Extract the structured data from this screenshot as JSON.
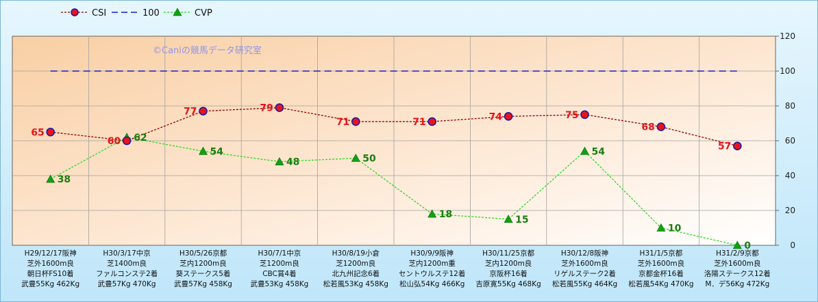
{
  "chart_data": {
    "type": "line",
    "ylim": [
      0,
      120
    ],
    "yticks": [
      0,
      20,
      40,
      60,
      80,
      100,
      120
    ],
    "grid": true,
    "legend_position": "top-left",
    "watermark": "©Caniの競馬データ研究室",
    "categories": [
      [
        "H29/12/17阪神",
        "芝外1600m良",
        "朝日杯FS10着",
        "武豊55Kg 462Kg"
      ],
      [
        "H30/3/17中京",
        "芝1400m良",
        "ファルコンステ2着",
        "武豊57Kg 470Kg"
      ],
      [
        "H30/5/26京都",
        "芝内1200m良",
        "葵ステークス5着",
        "武豊57Kg 458Kg"
      ],
      [
        "H30/7/1中京",
        "芝1200m良",
        "CBC賞4着",
        "武豊53Kg 458Kg"
      ],
      [
        "H30/8/19小倉",
        "芝1200m良",
        "北九州記念6着",
        "松若風53Kg 458Kg"
      ],
      [
        "H30/9/9阪神",
        "芝内1200m重",
        "セントウルステ12着",
        "松山弘54Kg 466Kg"
      ],
      [
        "H30/11/25京都",
        "芝内1200m良",
        "京阪杯16着",
        "吉原寛55Kg 468Kg"
      ],
      [
        "H30/12/8阪神",
        "芝外1600m良",
        "リゲルステーク2着",
        "松若風55Kg 464Kg"
      ],
      [
        "H31/1/5京都",
        "芝外1600m良",
        "京都金杯16着",
        "松若風54Kg 470Kg"
      ],
      [
        "H31/2/9京都",
        "芝外1600m良",
        "洛陽ステークス12着",
        "M．デ56Kg 472Kg"
      ]
    ],
    "series": [
      {
        "name": "CSI",
        "values": [
          65,
          60,
          77,
          79,
          71,
          71,
          74,
          75,
          68,
          57
        ],
        "color": "#8b0000",
        "marker": "circle",
        "marker_fill": "#e8141b",
        "marker_edge": "#1a1aa8",
        "label_color": "#e8141b"
      },
      {
        "name": "100",
        "values": [
          100,
          100,
          100,
          100,
          100,
          100,
          100,
          100,
          100,
          100
        ],
        "color": "#1a1acc",
        "marker": "none"
      },
      {
        "name": "CVP",
        "values": [
          38,
          62,
          54,
          48,
          50,
          18,
          15,
          54,
          10,
          0
        ],
        "color": "#22dd22",
        "marker": "triangle",
        "marker_fill": "#12a012",
        "label_color": "#1e7d12"
      }
    ]
  }
}
